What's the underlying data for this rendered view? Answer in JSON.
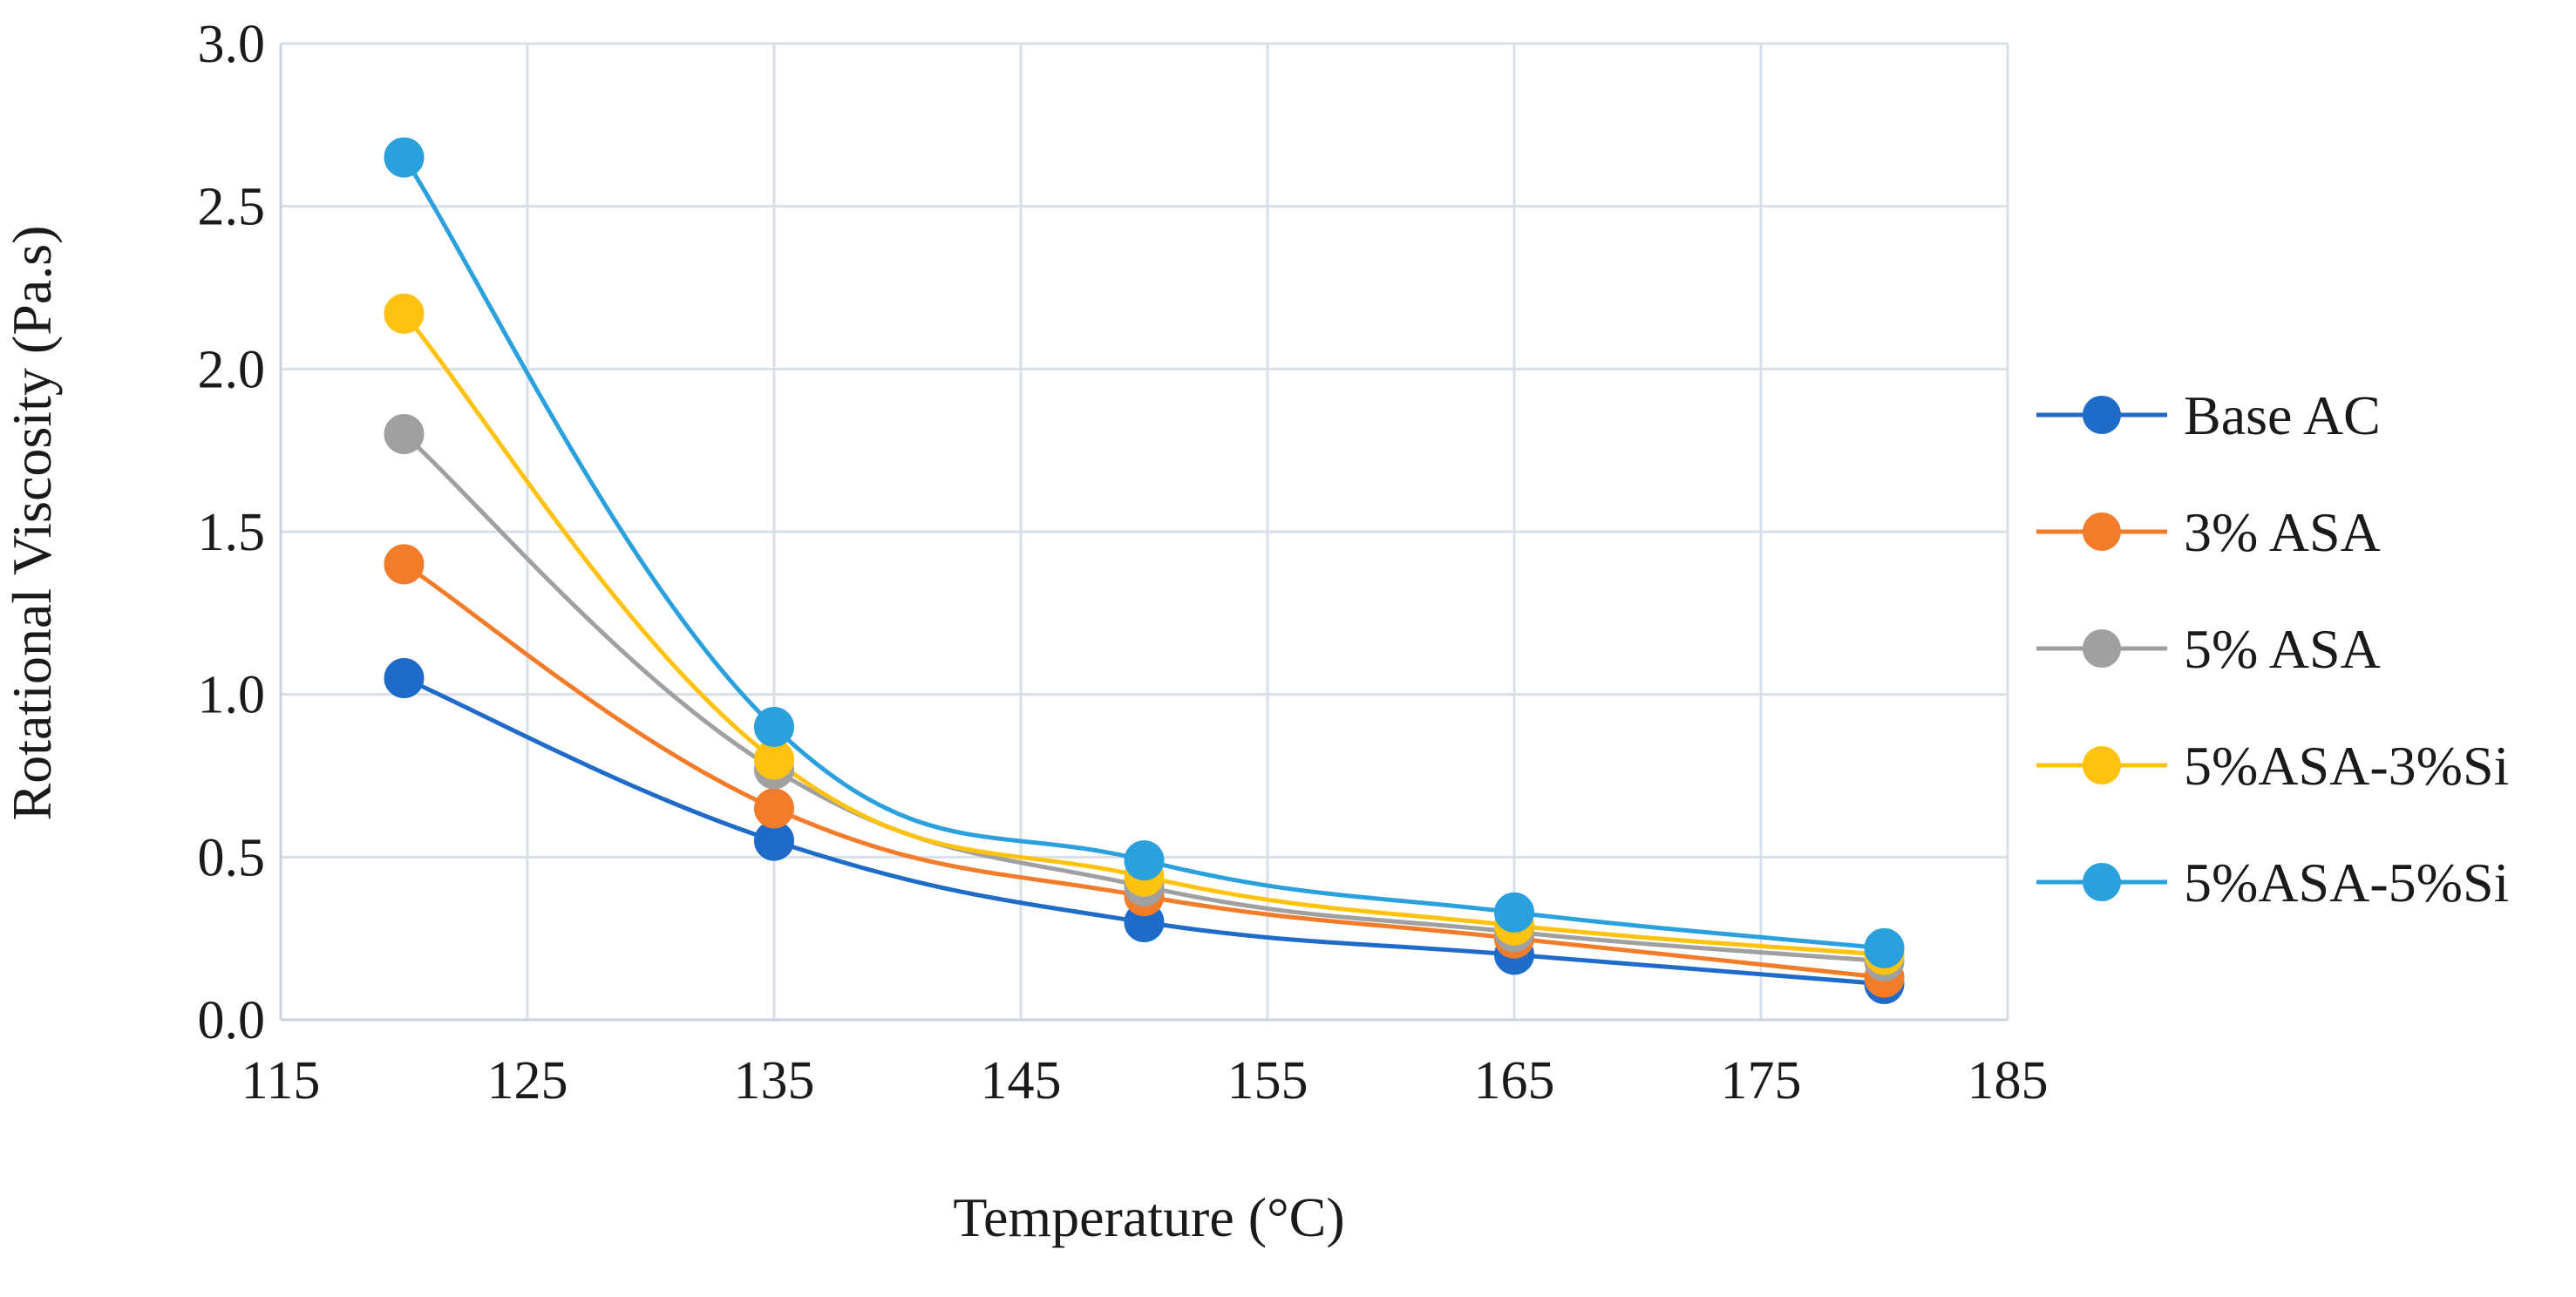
{
  "chart_data": {
    "type": "line",
    "title": "",
    "xlabel": "Temperature (°C)",
    "ylabel": "Rotational Viscosity (Pa.s)",
    "xlim": [
      115,
      185
    ],
    "ylim": [
      0.0,
      3.0
    ],
    "x_ticks": [
      "115",
      "125",
      "135",
      "145",
      "155",
      "165",
      "175",
      "185"
    ],
    "y_ticks": [
      "0.0",
      "0.5",
      "1.0",
      "1.5",
      "2.0",
      "2.5",
      "3.0"
    ],
    "x": [
      120,
      135,
      150,
      165,
      180
    ],
    "grid": true,
    "legend_position": "right",
    "series": [
      {
        "name": "Base AC",
        "color": "#1f6bc9",
        "values": [
          1.05,
          0.55,
          0.3,
          0.2,
          0.11
        ]
      },
      {
        "name": "3% ASA",
        "color": "#f27c2a",
        "values": [
          1.4,
          0.65,
          0.38,
          0.25,
          0.13
        ]
      },
      {
        "name": "5% ASA",
        "color": "#a0a0a0",
        "values": [
          1.8,
          0.77,
          0.41,
          0.27,
          0.18
        ]
      },
      {
        "name": "5%ASA-3%Si",
        "color": "#ffc20e",
        "values": [
          2.17,
          0.8,
          0.44,
          0.29,
          0.2
        ]
      },
      {
        "name": "5%ASA-5%Si",
        "color": "#2aa0dc",
        "values": [
          2.65,
          0.9,
          0.49,
          0.33,
          0.22
        ]
      }
    ]
  }
}
